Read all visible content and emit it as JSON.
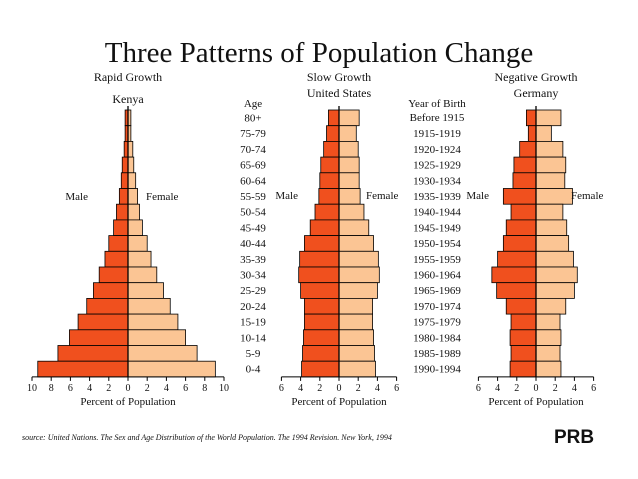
{
  "title": "Three Patterns of Population Change",
  "age_header": "Age",
  "birth_header_line1": "Year of Birth",
  "birth_header_line2": "Before 1915",
  "ages": [
    "80+",
    "75-79",
    "70-74",
    "65-69",
    "60-64",
    "55-59",
    "50-54",
    "45-49",
    "40-44",
    "35-39",
    "30-34",
    "25-29",
    "20-24",
    "15-19",
    "10-14",
    "5-9",
    "0-4"
  ],
  "birth_years": [
    "1915-1919",
    "1920-1924",
    "1925-1929",
    "1930-1934",
    "1935-1939",
    "1940-1944",
    "1945-1949",
    "1950-1954",
    "1955-1959",
    "1960-1964",
    "1965-1969",
    "1970-1974",
    "1975-1979",
    "1980-1984",
    "1985-1989",
    "1990-1994"
  ],
  "source": "source: United Nations. The Sex and Age Distribution of the World Population. The 1994 Revision. New York, 1994",
  "logo": "PRB",
  "colors": {
    "male": "#f0501e",
    "female": "#fbc594",
    "outline": "#000000"
  },
  "chart_data": [
    {
      "type": "bar",
      "subtitle_line1": "Rapid Growth",
      "subtitle_line2": "Kenya",
      "male_label": "Male",
      "female_label": "Female",
      "xlabel": "Percent of Population",
      "xlim": [
        -10,
        10
      ],
      "tick_labels": [
        "10",
        "8",
        "6",
        "4",
        "2",
        "0",
        "2",
        "4",
        "6",
        "8",
        "10"
      ],
      "tick_values": [
        -10,
        -8,
        -6,
        -4,
        -2,
        0,
        2,
        4,
        6,
        8,
        10
      ],
      "categories": [
        "80+",
        "75-79",
        "70-74",
        "65-69",
        "60-64",
        "55-59",
        "50-54",
        "45-49",
        "40-44",
        "35-39",
        "30-34",
        "25-29",
        "20-24",
        "15-19",
        "10-14",
        "5-9",
        "0-4"
      ],
      "series": [
        {
          "name": "Male",
          "values": [
            0.3,
            0.3,
            0.4,
            0.6,
            0.7,
            0.9,
            1.2,
            1.5,
            2.0,
            2.4,
            3.0,
            3.6,
            4.3,
            5.2,
            6.1,
            7.3,
            9.4
          ]
        },
        {
          "name": "Female",
          "values": [
            0.3,
            0.3,
            0.5,
            0.6,
            0.8,
            1.0,
            1.2,
            1.5,
            2.0,
            2.4,
            3.0,
            3.7,
            4.4,
            5.2,
            6.0,
            7.2,
            9.1
          ]
        }
      ]
    },
    {
      "type": "bar",
      "subtitle_line1": "Slow Growth",
      "subtitle_line2": "United States",
      "male_label": "Male",
      "female_label": "Female",
      "xlabel": "Percent of Population",
      "xlim": [
        -6,
        6
      ],
      "tick_labels": [
        "6",
        "4",
        "2",
        "0",
        "2",
        "4",
        "6"
      ],
      "tick_values": [
        -6,
        -4,
        -2,
        0,
        2,
        4,
        6
      ],
      "categories": [
        "80+",
        "75-79",
        "70-74",
        "65-69",
        "60-64",
        "55-59",
        "50-54",
        "45-49",
        "40-44",
        "35-39",
        "30-34",
        "25-29",
        "20-24",
        "15-19",
        "10-14",
        "5-9",
        "0-4"
      ],
      "series": [
        {
          "name": "Male",
          "values": [
            1.1,
            1.3,
            1.6,
            1.9,
            2.0,
            2.1,
            2.5,
            3.0,
            3.6,
            4.1,
            4.2,
            4.0,
            3.6,
            3.6,
            3.7,
            3.8,
            3.9
          ]
        },
        {
          "name": "Female",
          "values": [
            2.1,
            1.8,
            2.0,
            2.1,
            2.1,
            2.2,
            2.6,
            3.1,
            3.6,
            4.1,
            4.2,
            4.0,
            3.5,
            3.5,
            3.6,
            3.7,
            3.8
          ]
        }
      ]
    },
    {
      "type": "bar",
      "subtitle_line1": "Negative Growth",
      "subtitle_line2": "Germany",
      "male_label": "Male",
      "female_label": "Female",
      "xlabel": "Percent of Population",
      "xlim": [
        -6,
        6
      ],
      "tick_labels": [
        "6",
        "4",
        "2",
        "0",
        "2",
        "4",
        "6"
      ],
      "tick_values": [
        -6,
        -4,
        -2,
        0,
        2,
        4,
        6
      ],
      "categories": [
        "80+",
        "75-79",
        "70-74",
        "65-69",
        "60-64",
        "55-59",
        "50-54",
        "45-49",
        "40-44",
        "35-39",
        "30-34",
        "25-29",
        "20-24",
        "15-19",
        "10-14",
        "5-9",
        "0-4"
      ],
      "series": [
        {
          "name": "Male",
          "values": [
            1.0,
            0.8,
            1.7,
            2.3,
            2.4,
            3.4,
            2.6,
            3.1,
            3.4,
            4.0,
            4.6,
            4.1,
            3.1,
            2.6,
            2.7,
            2.6,
            2.7
          ]
        },
        {
          "name": "Female",
          "values": [
            2.6,
            1.6,
            2.8,
            3.1,
            3.0,
            3.8,
            2.8,
            3.2,
            3.4,
            3.9,
            4.3,
            4.0,
            3.1,
            2.5,
            2.6,
            2.5,
            2.6
          ]
        }
      ]
    }
  ]
}
